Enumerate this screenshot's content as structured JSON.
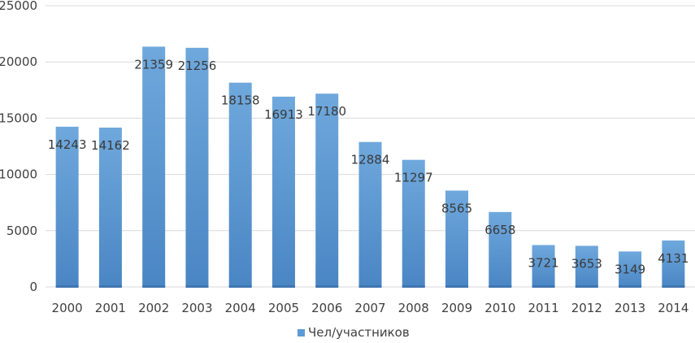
{
  "chart_data": {
    "type": "bar",
    "categories": [
      "2000",
      "2001",
      "2002",
      "2003",
      "2004",
      "2005",
      "2006",
      "2007",
      "2008",
      "2009",
      "2010",
      "2011",
      "2012",
      "2013",
      "2014"
    ],
    "series": [
      {
        "name": "Чел/участников",
        "values": [
          14243,
          14162,
          21359,
          21256,
          18158,
          16913,
          17180,
          12884,
          11297,
          8565,
          6658,
          3721,
          3653,
          3149,
          4131
        ],
        "color": "#5b9bd5"
      }
    ],
    "xlabel": "",
    "ylabel": "",
    "ylim": [
      0,
      25000
    ],
    "yticks": [
      0,
      5000,
      10000,
      15000,
      20000,
      25000
    ],
    "grid": true,
    "legend_position": "bottom"
  }
}
